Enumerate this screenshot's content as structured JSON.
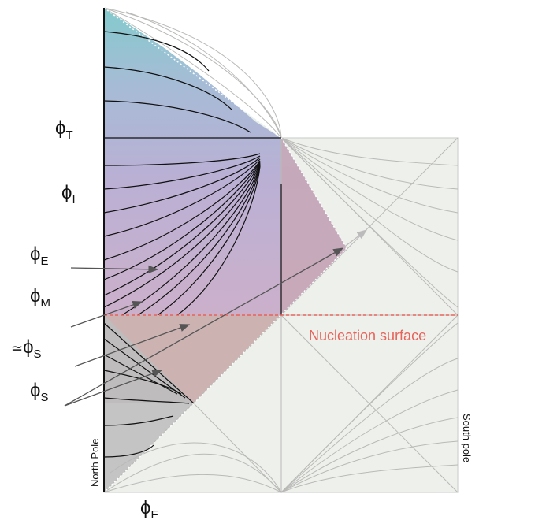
{
  "labels": {
    "phi_T": {
      "symbol": "ϕ",
      "subscript": "T"
    },
    "phi_I": {
      "symbol": "ϕ",
      "subscript": "I"
    },
    "phi_E": {
      "symbol": "ϕ",
      "subscript": "E"
    },
    "phi_M": {
      "symbol": "ϕ",
      "subscript": "M"
    },
    "approx_phi_S": {
      "prefix": "≃",
      "symbol": "ϕ",
      "subscript": "S"
    },
    "phi_S": {
      "symbol": "ϕ",
      "subscript": "S"
    },
    "phi_F": {
      "symbol": "ϕ",
      "subscript": "F"
    }
  },
  "nucleation_surface": "Nucleation surface",
  "north_pole": "North Pole",
  "south_pole": "South pole",
  "colors": {
    "nucleation": "#e8635a",
    "background_square": "#eef0ec",
    "teal": "#6fc3c8",
    "purple": "#b7a8d3",
    "mauve": "#c6a7b6",
    "grey": "#b9b9b9"
  }
}
